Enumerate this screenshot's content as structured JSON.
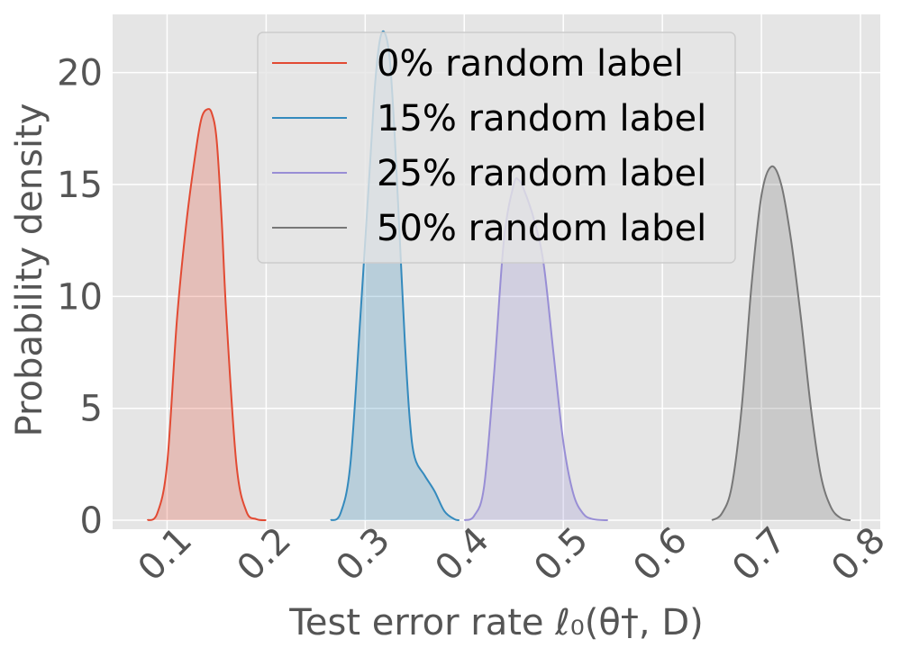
{
  "chart_data": {
    "type": "area",
    "xlabel": "Test error rate ℓ₀(θ†, D)",
    "ylabel": "Probability density",
    "xlim": [
      0.045,
      0.82
    ],
    "ylim": [
      -0.4,
      22.6
    ],
    "xticks": [
      "0.1",
      "0.2",
      "0.3",
      "0.4",
      "0.5",
      "0.6",
      "0.7",
      "0.8"
    ],
    "yticks": [
      "0",
      "5",
      "10",
      "15",
      "20"
    ],
    "grid": true,
    "legend_position": "top-center",
    "series": [
      {
        "name": "0% random label",
        "color": "#E24A33",
        "x": [
          0.08,
          0.09,
          0.1,
          0.11,
          0.12,
          0.13,
          0.135,
          0.14,
          0.145,
          0.15,
          0.155,
          0.16,
          0.17,
          0.18,
          0.19,
          0.2
        ],
        "y": [
          0.0,
          0.3,
          2.5,
          9.0,
          13.5,
          16.8,
          18.0,
          18.35,
          18.2,
          17.0,
          13.5,
          9.0,
          2.5,
          0.4,
          0.05,
          0.0
        ]
      },
      {
        "name": "15% random label",
        "color": "#348ABD",
        "x": [
          0.265,
          0.275,
          0.285,
          0.295,
          0.305,
          0.31,
          0.315,
          0.32,
          0.325,
          0.33,
          0.335,
          0.34,
          0.345,
          0.35,
          0.36,
          0.37,
          0.38,
          0.39,
          0.395
        ],
        "y": [
          0.0,
          0.3,
          2.5,
          9.0,
          16.0,
          19.5,
          21.5,
          21.75,
          20.5,
          17.0,
          12.5,
          8.0,
          4.5,
          2.8,
          2.0,
          1.3,
          0.4,
          0.05,
          0.0
        ]
      },
      {
        "name": "25% random label",
        "color": "#988ED5",
        "x": [
          0.4,
          0.41,
          0.42,
          0.43,
          0.44,
          0.45,
          0.455,
          0.46,
          0.47,
          0.48,
          0.49,
          0.5,
          0.51,
          0.52,
          0.53,
          0.545
        ],
        "y": [
          0.0,
          0.2,
          1.5,
          6.5,
          12.5,
          15.0,
          15.2,
          14.8,
          13.5,
          11.5,
          7.5,
          3.5,
          1.2,
          0.3,
          0.05,
          0.0
        ]
      },
      {
        "name": "50% random label",
        "color": "#777777",
        "x": [
          0.65,
          0.66,
          0.67,
          0.68,
          0.69,
          0.7,
          0.71,
          0.72,
          0.73,
          0.74,
          0.75,
          0.76,
          0.77,
          0.78,
          0.79
        ],
        "y": [
          0.0,
          0.3,
          1.5,
          5.0,
          10.5,
          14.5,
          15.8,
          15.0,
          12.5,
          9.0,
          5.0,
          2.0,
          0.6,
          0.1,
          0.0
        ]
      }
    ]
  }
}
